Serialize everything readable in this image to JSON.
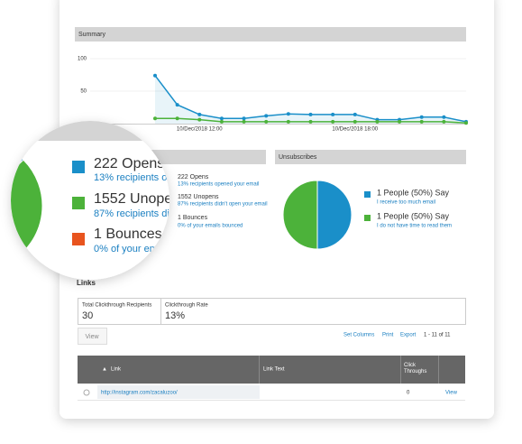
{
  "chart_data": [
    {
      "type": "line",
      "title": "Summary",
      "categories": [
        null,
        null,
        "10/Dec/2018 12:00",
        null,
        null,
        null,
        null,
        null,
        null,
        "10/Dec/2018 18:00",
        null,
        null,
        null,
        null,
        null
      ],
      "series": [
        {
          "color": "#1a8fc9",
          "values": [
            74,
            29,
            14,
            8,
            8,
            12,
            15,
            14,
            14,
            14,
            6,
            6,
            10,
            10,
            3
          ]
        },
        {
          "color": "#4cb23a",
          "values": [
            8,
            8,
            6,
            3,
            3,
            3,
            3,
            3,
            3,
            3,
            3,
            3,
            3,
            3,
            1
          ]
        }
      ],
      "ylim": [
        0,
        100
      ],
      "yticks": [
        50,
        100
      ]
    },
    {
      "type": "pie",
      "categories": [
        "222 Opens",
        "1552 Unopens",
        "1 Bounces"
      ],
      "descriptions": [
        "13% recipients opened your email",
        "87% recipients didn't open your email",
        "0% of your emails bounced"
      ],
      "values": [
        222,
        1552,
        1
      ],
      "colors": [
        "#1a8fc9",
        "#4cb23a",
        "#e8541e"
      ]
    },
    {
      "type": "pie",
      "title": "Unsubscribes",
      "categories": [
        "1 People (50%) Say",
        "1 People (50%) Say"
      ],
      "descriptions": [
        "I receive too much email",
        "I do not have time to read them"
      ],
      "values": [
        50,
        50
      ],
      "colors": [
        "#1a8fc9",
        "#4cb23a"
      ]
    }
  ],
  "links": {
    "title": "Links",
    "stats": [
      {
        "label": "Total Clickthrough Recipients",
        "value": "30"
      },
      {
        "label": "Clickthrough Rate",
        "value": "13%"
      }
    ],
    "view_button": "View",
    "toolbar": [
      "Set Columns",
      "Print",
      "Export"
    ],
    "pager": "1 - 11 of 11",
    "table": {
      "header": [
        "Link",
        "Link Text",
        "Click Throughs"
      ],
      "rows": [
        {
          "link": "http://instagram.com/zacaluzoo/",
          "link_text": "",
          "clicks": "0",
          "action": "View"
        }
      ]
    }
  }
}
